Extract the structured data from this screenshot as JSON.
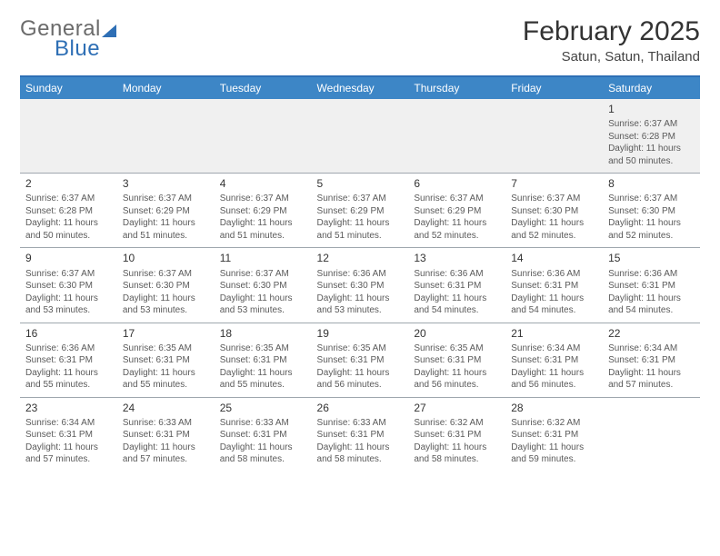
{
  "logo": {
    "text1": "General",
    "text2": "Blue"
  },
  "title": "February 2025",
  "subtitle": "Satun, Satun, Thailand",
  "headers": [
    "Sunday",
    "Monday",
    "Tuesday",
    "Wednesday",
    "Thursday",
    "Friday",
    "Saturday"
  ],
  "colors": {
    "accent": "#2e6fb5",
    "header_bg": "#3d86c6",
    "grey_text": "#6b6b6b",
    "row_border": "#9fa7ae",
    "first_row_bg": "#f0f0f0"
  },
  "weeks": [
    [
      null,
      null,
      null,
      null,
      null,
      null,
      {
        "n": "1",
        "sunrise": "Sunrise: 6:37 AM",
        "sunset": "Sunset: 6:28 PM",
        "day1": "Daylight: 11 hours",
        "day2": "and 50 minutes."
      }
    ],
    [
      {
        "n": "2",
        "sunrise": "Sunrise: 6:37 AM",
        "sunset": "Sunset: 6:28 PM",
        "day1": "Daylight: 11 hours",
        "day2": "and 50 minutes."
      },
      {
        "n": "3",
        "sunrise": "Sunrise: 6:37 AM",
        "sunset": "Sunset: 6:29 PM",
        "day1": "Daylight: 11 hours",
        "day2": "and 51 minutes."
      },
      {
        "n": "4",
        "sunrise": "Sunrise: 6:37 AM",
        "sunset": "Sunset: 6:29 PM",
        "day1": "Daylight: 11 hours",
        "day2": "and 51 minutes."
      },
      {
        "n": "5",
        "sunrise": "Sunrise: 6:37 AM",
        "sunset": "Sunset: 6:29 PM",
        "day1": "Daylight: 11 hours",
        "day2": "and 51 minutes."
      },
      {
        "n": "6",
        "sunrise": "Sunrise: 6:37 AM",
        "sunset": "Sunset: 6:29 PM",
        "day1": "Daylight: 11 hours",
        "day2": "and 52 minutes."
      },
      {
        "n": "7",
        "sunrise": "Sunrise: 6:37 AM",
        "sunset": "Sunset: 6:30 PM",
        "day1": "Daylight: 11 hours",
        "day2": "and 52 minutes."
      },
      {
        "n": "8",
        "sunrise": "Sunrise: 6:37 AM",
        "sunset": "Sunset: 6:30 PM",
        "day1": "Daylight: 11 hours",
        "day2": "and 52 minutes."
      }
    ],
    [
      {
        "n": "9",
        "sunrise": "Sunrise: 6:37 AM",
        "sunset": "Sunset: 6:30 PM",
        "day1": "Daylight: 11 hours",
        "day2": "and 53 minutes."
      },
      {
        "n": "10",
        "sunrise": "Sunrise: 6:37 AM",
        "sunset": "Sunset: 6:30 PM",
        "day1": "Daylight: 11 hours",
        "day2": "and 53 minutes."
      },
      {
        "n": "11",
        "sunrise": "Sunrise: 6:37 AM",
        "sunset": "Sunset: 6:30 PM",
        "day1": "Daylight: 11 hours",
        "day2": "and 53 minutes."
      },
      {
        "n": "12",
        "sunrise": "Sunrise: 6:36 AM",
        "sunset": "Sunset: 6:30 PM",
        "day1": "Daylight: 11 hours",
        "day2": "and 53 minutes."
      },
      {
        "n": "13",
        "sunrise": "Sunrise: 6:36 AM",
        "sunset": "Sunset: 6:31 PM",
        "day1": "Daylight: 11 hours",
        "day2": "and 54 minutes."
      },
      {
        "n": "14",
        "sunrise": "Sunrise: 6:36 AM",
        "sunset": "Sunset: 6:31 PM",
        "day1": "Daylight: 11 hours",
        "day2": "and 54 minutes."
      },
      {
        "n": "15",
        "sunrise": "Sunrise: 6:36 AM",
        "sunset": "Sunset: 6:31 PM",
        "day1": "Daylight: 11 hours",
        "day2": "and 54 minutes."
      }
    ],
    [
      {
        "n": "16",
        "sunrise": "Sunrise: 6:36 AM",
        "sunset": "Sunset: 6:31 PM",
        "day1": "Daylight: 11 hours",
        "day2": "and 55 minutes."
      },
      {
        "n": "17",
        "sunrise": "Sunrise: 6:35 AM",
        "sunset": "Sunset: 6:31 PM",
        "day1": "Daylight: 11 hours",
        "day2": "and 55 minutes."
      },
      {
        "n": "18",
        "sunrise": "Sunrise: 6:35 AM",
        "sunset": "Sunset: 6:31 PM",
        "day1": "Daylight: 11 hours",
        "day2": "and 55 minutes."
      },
      {
        "n": "19",
        "sunrise": "Sunrise: 6:35 AM",
        "sunset": "Sunset: 6:31 PM",
        "day1": "Daylight: 11 hours",
        "day2": "and 56 minutes."
      },
      {
        "n": "20",
        "sunrise": "Sunrise: 6:35 AM",
        "sunset": "Sunset: 6:31 PM",
        "day1": "Daylight: 11 hours",
        "day2": "and 56 minutes."
      },
      {
        "n": "21",
        "sunrise": "Sunrise: 6:34 AM",
        "sunset": "Sunset: 6:31 PM",
        "day1": "Daylight: 11 hours",
        "day2": "and 56 minutes."
      },
      {
        "n": "22",
        "sunrise": "Sunrise: 6:34 AM",
        "sunset": "Sunset: 6:31 PM",
        "day1": "Daylight: 11 hours",
        "day2": "and 57 minutes."
      }
    ],
    [
      {
        "n": "23",
        "sunrise": "Sunrise: 6:34 AM",
        "sunset": "Sunset: 6:31 PM",
        "day1": "Daylight: 11 hours",
        "day2": "and 57 minutes."
      },
      {
        "n": "24",
        "sunrise": "Sunrise: 6:33 AM",
        "sunset": "Sunset: 6:31 PM",
        "day1": "Daylight: 11 hours",
        "day2": "and 57 minutes."
      },
      {
        "n": "25",
        "sunrise": "Sunrise: 6:33 AM",
        "sunset": "Sunset: 6:31 PM",
        "day1": "Daylight: 11 hours",
        "day2": "and 58 minutes."
      },
      {
        "n": "26",
        "sunrise": "Sunrise: 6:33 AM",
        "sunset": "Sunset: 6:31 PM",
        "day1": "Daylight: 11 hours",
        "day2": "and 58 minutes."
      },
      {
        "n": "27",
        "sunrise": "Sunrise: 6:32 AM",
        "sunset": "Sunset: 6:31 PM",
        "day1": "Daylight: 11 hours",
        "day2": "and 58 minutes."
      },
      {
        "n": "28",
        "sunrise": "Sunrise: 6:32 AM",
        "sunset": "Sunset: 6:31 PM",
        "day1": "Daylight: 11 hours",
        "day2": "and 59 minutes."
      },
      null
    ]
  ]
}
